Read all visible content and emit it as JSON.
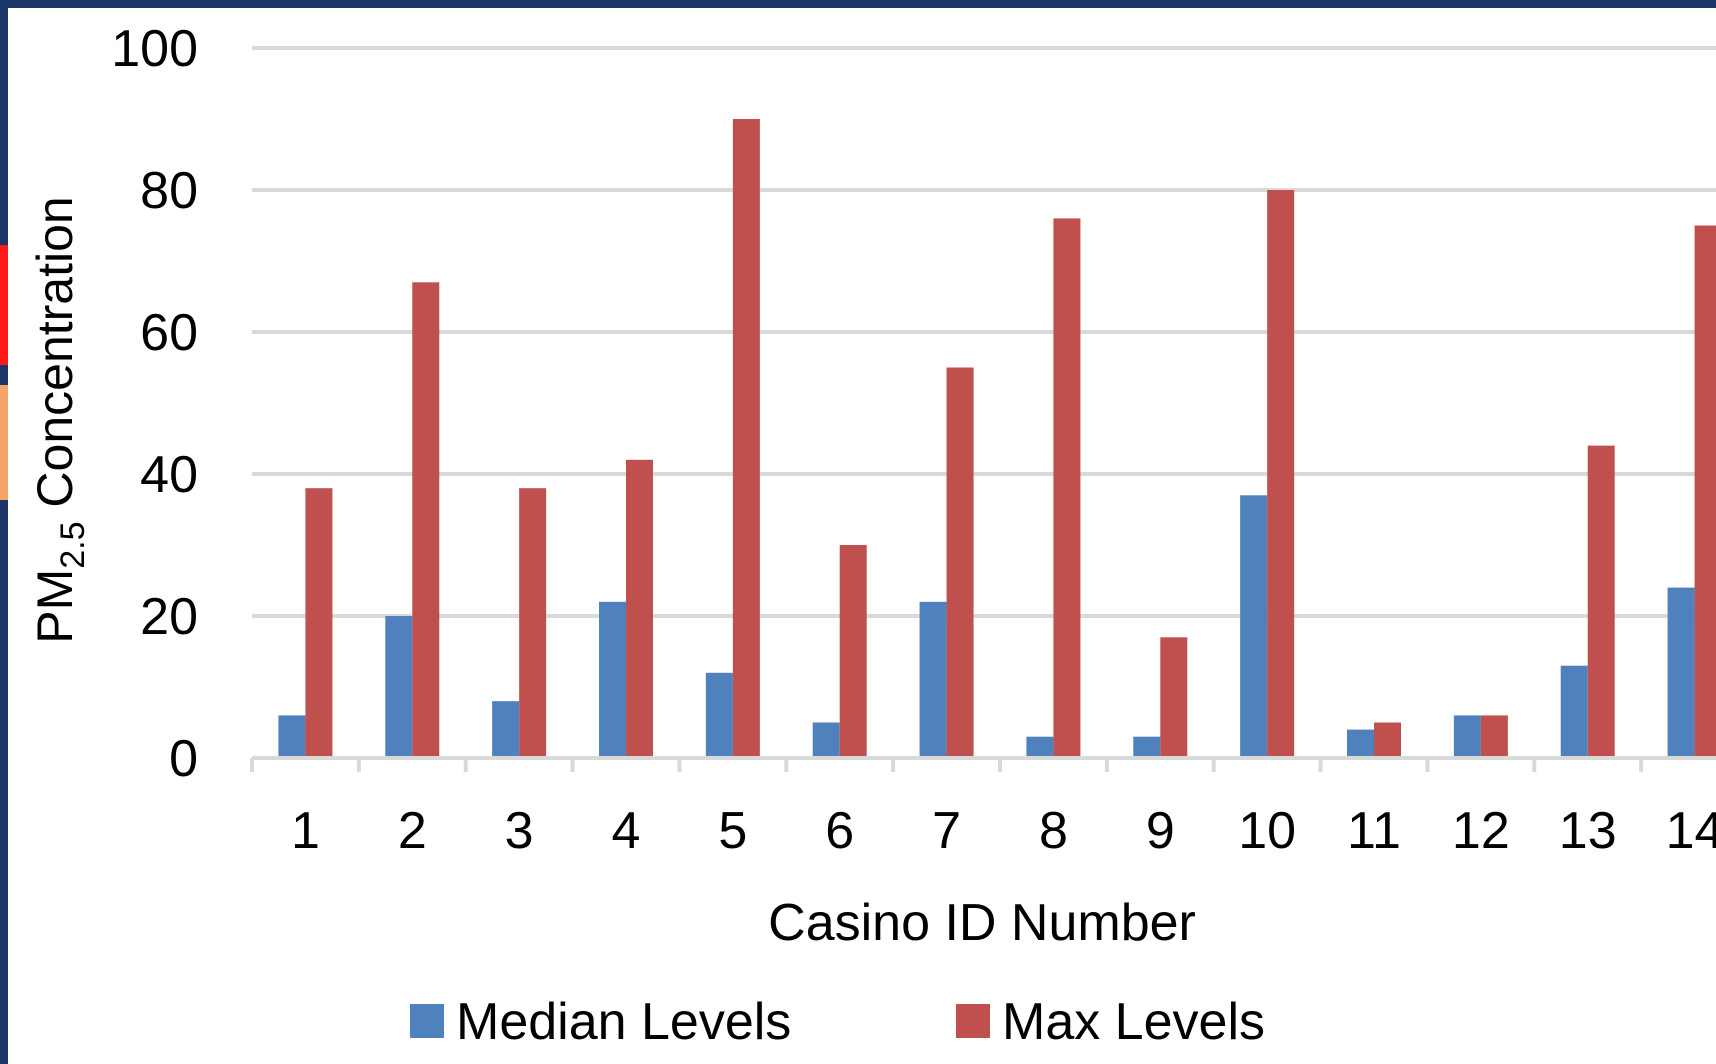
{
  "colors": {
    "median": "#4f81bd",
    "max": "#c0504d",
    "grid": "#d9d9d9",
    "frame": "#1b3566",
    "edge_red": "#ff1a1a",
    "edge_orange": "#f7a46a"
  },
  "chart_data": {
    "type": "bar",
    "title": "",
    "xlabel": "Casino ID Number",
    "ylabel_prefix": "PM",
    "ylabel_sub": "2.5",
    "ylabel_suffix": " Concentration",
    "ylim": [
      0,
      100
    ],
    "yticks": [
      "0",
      "20",
      "40",
      "60",
      "80",
      "100"
    ],
    "grid": true,
    "legend_position": "bottom",
    "categories": [
      "1",
      "2",
      "3",
      "4",
      "5",
      "6",
      "7",
      "8",
      "9",
      "10",
      "11",
      "12",
      "13",
      "14"
    ],
    "series": [
      {
        "name": "Median Levels",
        "values": [
          6,
          20,
          8,
          22,
          12,
          5,
          22,
          3,
          3,
          37,
          4,
          6,
          13,
          24
        ]
      },
      {
        "name": "Max Levels",
        "values": [
          38,
          67,
          38,
          42,
          90,
          30,
          55,
          76,
          17,
          80,
          5,
          6,
          44,
          75
        ]
      }
    ]
  }
}
